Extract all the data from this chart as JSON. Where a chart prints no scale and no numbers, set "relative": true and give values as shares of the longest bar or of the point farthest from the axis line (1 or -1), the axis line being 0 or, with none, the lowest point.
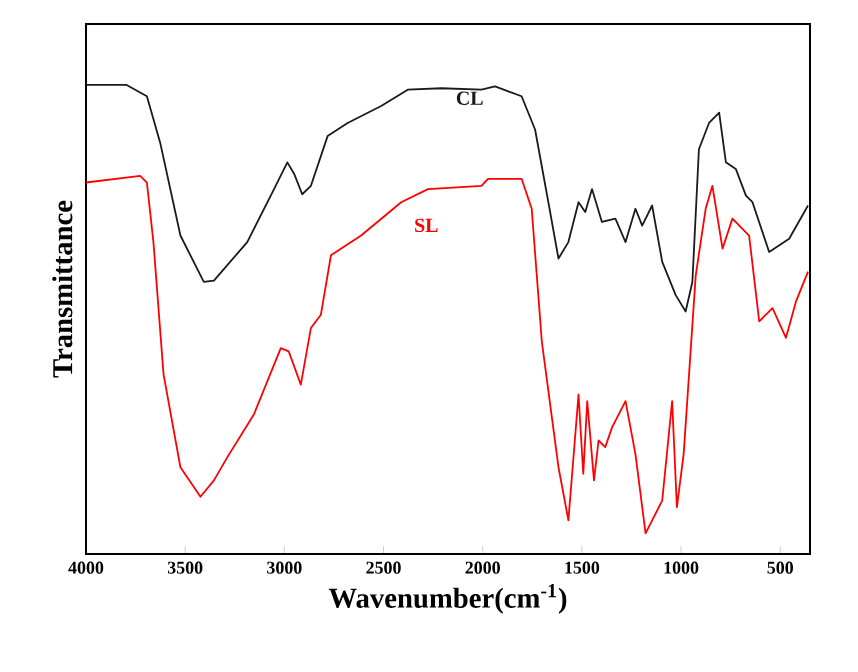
{
  "chart_data": {
    "type": "line",
    "xlabel": "Wavenumber(cm$^{-1}$)",
    "ylabel": "Transmittance",
    "relative": true,
    "tick_labels": "x",
    "grid": false,
    "marker": "none",
    "line_style": "solid",
    "xlim": [
      4000,
      350
    ],
    "xticks": [
      4000,
      3500,
      3000,
      2500,
      2000,
      1500,
      1000,
      500
    ],
    "series": [
      {
        "name": "CL",
        "color": "#1a1a1a",
        "x": [
          4000,
          3795,
          3693,
          3626,
          3524,
          3406,
          3355,
          3187,
          3052,
          2985,
          2950,
          2910,
          2866,
          2782,
          2681,
          2512,
          2378,
          2208,
          2006,
          1938,
          1804,
          1736,
          1669,
          1618,
          1568,
          1517,
          1483,
          1449,
          1399,
          1331,
          1280,
          1230,
          1196,
          1146,
          1095,
          1027,
          977,
          943,
          910,
          859,
          808,
          774,
          724,
          673,
          640,
          556,
          455,
          360
        ],
        "values": [
          1.0,
          1.0,
          0.976,
          0.877,
          0.679,
          0.58,
          0.583,
          0.665,
          0.778,
          0.835,
          0.81,
          0.767,
          0.785,
          0.891,
          0.919,
          0.955,
          0.99,
          0.993,
          0.99,
          0.997,
          0.976,
          0.905,
          0.75,
          0.63,
          0.665,
          0.75,
          0.729,
          0.778,
          0.708,
          0.715,
          0.665,
          0.736,
          0.7,
          0.743,
          0.623,
          0.552,
          0.517,
          0.58,
          0.863,
          0.919,
          0.941,
          0.835,
          0.821,
          0.764,
          0.75,
          0.644,
          0.672,
          0.743
        ]
      },
      {
        "name": "SL",
        "color": "#ff0000",
        "x": [
          4000,
          3727,
          3693,
          3660,
          3609,
          3524,
          3423,
          3355,
          3288,
          3153,
          3018,
          2978,
          2917,
          2866,
          2816,
          2765,
          2613,
          2411,
          2276,
          2006,
          1973,
          1804,
          1753,
          1702,
          1618,
          1568,
          1517,
          1493,
          1473,
          1439,
          1416,
          1382,
          1348,
          1280,
          1230,
          1179,
          1095,
          1045,
          1021,
          987,
          926,
          876,
          842,
          791,
          741,
          657,
          606,
          539,
          471,
          421,
          360
        ],
        "values": [
          0.792,
          0.806,
          0.792,
          0.665,
          0.383,
          0.185,
          0.122,
          0.157,
          0.206,
          0.298,
          0.439,
          0.432,
          0.361,
          0.482,
          0.51,
          0.637,
          0.679,
          0.75,
          0.778,
          0.785,
          0.8,
          0.8,
          0.736,
          0.453,
          0.185,
          0.072,
          0.34,
          0.171,
          0.326,
          0.157,
          0.242,
          0.228,
          0.27,
          0.326,
          0.213,
          0.044,
          0.114,
          0.326,
          0.1,
          0.213,
          0.594,
          0.736,
          0.785,
          0.651,
          0.715,
          0.679,
          0.496,
          0.524,
          0.461,
          0.538,
          0.602
        ]
      }
    ]
  }
}
